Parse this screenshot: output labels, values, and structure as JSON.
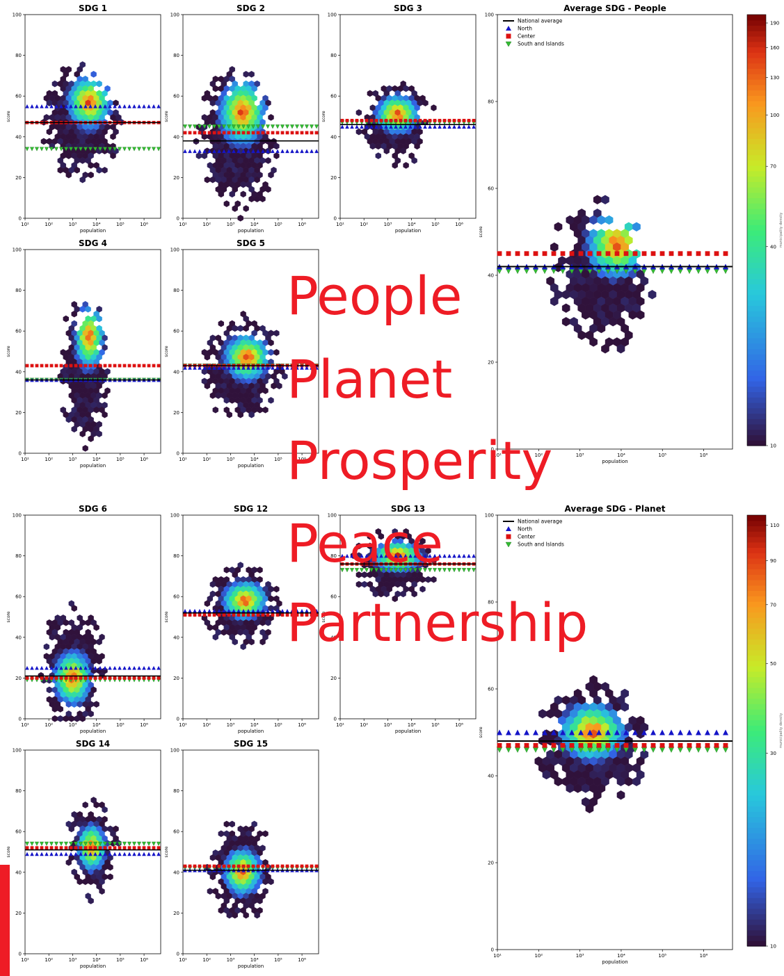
{
  "overlay_words": [
    "People",
    "Planet",
    "Prosperity",
    "Peace",
    "Partnership"
  ],
  "colors": {
    "overlay": "#ee1c25",
    "north": "#1515c8",
    "center": "#dd1111",
    "south": "#33bb33",
    "national": "#000000",
    "background_hex": "#2a0f3f"
  },
  "chart_data": [
    {
      "type": "heatmap",
      "title": "SDG 1",
      "xlabel": "population",
      "ylabel": "score",
      "xscale": "log",
      "xlim": [
        10,
        5000000
      ],
      "ylim": [
        0,
        100
      ],
      "yticks": [
        0,
        20,
        40,
        60,
        80,
        100
      ],
      "xticks": [
        "10¹",
        "10²",
        "10³",
        "10⁴",
        "10⁵",
        "10⁶"
      ],
      "center": {
        "logpop": 3.4,
        "score": 47
      },
      "spread": {
        "logpop": 0.75,
        "score": 14
      },
      "peak": {
        "logpop": 3.7,
        "score": 57
      },
      "averages": {
        "national": 47,
        "north": 55,
        "center": 47,
        "south": 34
      }
    },
    {
      "type": "heatmap",
      "title": "SDG 2",
      "xlabel": "population",
      "ylabel": "score",
      "xscale": "log",
      "xlim": [
        10,
        5000000
      ],
      "ylim": [
        0,
        100
      ],
      "yticks": [
        0,
        20,
        40,
        60,
        80,
        100
      ],
      "xticks": [
        "10¹",
        "10²",
        "10³",
        "10⁴",
        "10⁵",
        "10⁶"
      ],
      "center": {
        "logpop": 3.3,
        "score": 38
      },
      "spread": {
        "logpop": 0.8,
        "score": 17
      },
      "peak": {
        "logpop": 3.5,
        "score": 52
      },
      "averages": {
        "national": 38,
        "north": 33,
        "center": 42,
        "south": 45
      }
    },
    {
      "type": "heatmap",
      "title": "SDG 3",
      "xlabel": "population",
      "ylabel": "score",
      "xscale": "log",
      "xlim": [
        10,
        5000000
      ],
      "ylim": [
        0,
        100
      ],
      "yticks": [
        0,
        20,
        40,
        60,
        80,
        100
      ],
      "xticks": [
        "10¹",
        "10²",
        "10³",
        "10⁴",
        "10⁵",
        "10⁶"
      ],
      "center": {
        "logpop": 3.3,
        "score": 47
      },
      "spread": {
        "logpop": 0.75,
        "score": 10
      },
      "peak": {
        "logpop": 3.4,
        "score": 51
      },
      "averages": {
        "national": 46,
        "north": 45,
        "center": 48,
        "south": 47
      }
    },
    {
      "type": "heatmap",
      "title": "SDG 4",
      "xlabel": "population",
      "ylabel": "score",
      "xscale": "log",
      "xlim": [
        10,
        5000000
      ],
      "ylim": [
        0,
        100
      ],
      "yticks": [
        0,
        20,
        40,
        60,
        80,
        100
      ],
      "xticks": [
        "10¹",
        "10²",
        "10³",
        "10⁴",
        "10⁵",
        "10⁶"
      ],
      "center": {
        "logpop": 3.5,
        "score": 40
      },
      "spread": {
        "logpop": 0.5,
        "score": 17
      },
      "peak": {
        "logpop": 3.7,
        "score": 57
      },
      "averages": {
        "national": 36,
        "north": 36,
        "center": 43,
        "south": 36
      }
    },
    {
      "type": "heatmap",
      "title": "SDG 5",
      "xlabel": "population",
      "ylabel": "score",
      "xscale": "log",
      "xlim": [
        10,
        5000000
      ],
      "ylim": [
        0,
        100
      ],
      "yticks": [
        0,
        20,
        40,
        60,
        80,
        100
      ],
      "xticks": [
        "10¹",
        "10²",
        "10³",
        "10⁴",
        "10⁵",
        "10⁶"
      ],
      "center": {
        "logpop": 3.5,
        "score": 42
      },
      "spread": {
        "logpop": 0.8,
        "score": 12
      },
      "peak": {
        "logpop": 3.7,
        "score": 47
      },
      "averages": {
        "national": 43,
        "north": 42,
        "center": 43,
        "south": 43
      }
    },
    {
      "type": "heatmap",
      "title": "Average SDG - People",
      "xlabel": "population",
      "ylabel": "score",
      "xscale": "log",
      "xlim": [
        10,
        5000000
      ],
      "ylim": [
        0,
        100
      ],
      "yticks": [
        0,
        20,
        40,
        60,
        80,
        100
      ],
      "xticks": [
        "10¹",
        "10²",
        "10³",
        "10⁴",
        "10⁵",
        "10⁶"
      ],
      "center": {
        "logpop": 3.5,
        "score": 40
      },
      "spread": {
        "logpop": 0.6,
        "score": 8
      },
      "peak": {
        "logpop": 3.9,
        "score": 47
      },
      "averages": {
        "national": 42,
        "north": 42,
        "center": 45,
        "south": 41
      },
      "legend": [
        "National average",
        "North",
        "Center",
        "South and Islands"
      ],
      "colorbar": {
        "label": "municipality density",
        "ticks": [
          10,
          40,
          70,
          100,
          130,
          160,
          190
        ]
      }
    },
    {
      "type": "heatmap",
      "title": "SDG 6",
      "xlabel": "population",
      "ylabel": "score",
      "xscale": "log",
      "xlim": [
        10,
        5000000
      ],
      "ylim": [
        0,
        100
      ],
      "yticks": [
        0,
        20,
        40,
        60,
        80,
        100
      ],
      "xticks": [
        "10¹",
        "10²",
        "10³",
        "10⁴",
        "10⁵",
        "10⁶"
      ],
      "center": {
        "logpop": 3.0,
        "score": 25
      },
      "spread": {
        "logpop": 0.65,
        "score": 14
      },
      "peak": {
        "logpop": 3.0,
        "score": 20
      },
      "averages": {
        "national": 21,
        "north": 25,
        "center": 20,
        "south": 19
      }
    },
    {
      "type": "heatmap",
      "title": "SDG 12",
      "xlabel": "population",
      "ylabel": "score",
      "xscale": "log",
      "xlim": [
        10,
        5000000
      ],
      "ylim": [
        0,
        100
      ],
      "yticks": [
        0,
        20,
        40,
        60,
        80,
        100
      ],
      "xticks": [
        "10¹",
        "10²",
        "10³",
        "10⁴",
        "10⁵",
        "10⁶"
      ],
      "center": {
        "logpop": 3.5,
        "score": 55
      },
      "spread": {
        "logpop": 0.75,
        "score": 10
      },
      "peak": {
        "logpop": 3.6,
        "score": 58
      },
      "averages": {
        "national": 52,
        "north": 53,
        "center": 51,
        "south": 51
      }
    },
    {
      "type": "heatmap",
      "title": "SDG 13",
      "xlabel": "population",
      "ylabel": "score",
      "xscale": "log",
      "xlim": [
        10,
        5000000
      ],
      "ylim": [
        0,
        100
      ],
      "yticks": [
        0,
        20,
        40,
        60,
        80,
        100
      ],
      "xticks": [
        "10¹",
        "10²",
        "10³",
        "10⁴",
        "10⁵",
        "10⁶"
      ],
      "center": {
        "logpop": 3.3,
        "score": 76
      },
      "spread": {
        "logpop": 0.85,
        "score": 8
      },
      "peak": {
        "logpop": 3.4,
        "score": 80
      },
      "averages": {
        "national": 76,
        "north": 80,
        "center": 76,
        "south": 73
      }
    },
    {
      "type": "heatmap",
      "title": "Average SDG - Planet",
      "xlabel": "population",
      "ylabel": "score",
      "xscale": "log",
      "xlim": [
        10,
        5000000
      ],
      "ylim": [
        0,
        100
      ],
      "yticks": [
        0,
        20,
        40,
        60,
        80,
        100
      ],
      "xticks": [
        "10¹",
        "10²",
        "10³",
        "10⁴",
        "10⁵",
        "10⁶"
      ],
      "center": {
        "logpop": 3.3,
        "score": 47
      },
      "spread": {
        "logpop": 0.65,
        "score": 7
      },
      "peak": {
        "logpop": 3.3,
        "score": 50
      },
      "averages": {
        "national": 48,
        "north": 50,
        "center": 47,
        "south": 46
      },
      "legend": [
        "National average",
        "North",
        "Center",
        "South and Islands"
      ],
      "colorbar": {
        "label": "municipality density",
        "ticks": [
          10,
          30,
          50,
          70,
          90,
          110
        ]
      }
    },
    {
      "type": "heatmap",
      "title": "SDG 14",
      "xlabel": "population",
      "ylabel": "score",
      "xscale": "log",
      "xlim": [
        10,
        5000000
      ],
      "ylim": [
        0,
        100
      ],
      "yticks": [
        0,
        20,
        40,
        60,
        80,
        100
      ],
      "xticks": [
        "10¹",
        "10²",
        "10³",
        "10⁴",
        "10⁵",
        "10⁶"
      ],
      "center": {
        "logpop": 3.8,
        "score": 52
      },
      "spread": {
        "logpop": 0.5,
        "score": 12
      },
      "peak": {
        "logpop": 3.8,
        "score": 52
      },
      "averages": {
        "national": 51,
        "north": 49,
        "center": 52,
        "south": 54
      }
    },
    {
      "type": "heatmap",
      "title": "SDG 15",
      "xlabel": "population",
      "ylabel": "score",
      "xscale": "log",
      "xlim": [
        10,
        5000000
      ],
      "ylim": [
        0,
        100
      ],
      "yticks": [
        0,
        20,
        40,
        60,
        80,
        100
      ],
      "xticks": [
        "10¹",
        "10²",
        "10³",
        "10⁴",
        "10⁵",
        "10⁶"
      ],
      "center": {
        "logpop": 3.4,
        "score": 42
      },
      "spread": {
        "logpop": 0.65,
        "score": 12
      },
      "peak": {
        "logpop": 3.5,
        "score": 40
      },
      "averages": {
        "national": 41,
        "north": 41,
        "center": 43,
        "south": 42
      }
    }
  ]
}
